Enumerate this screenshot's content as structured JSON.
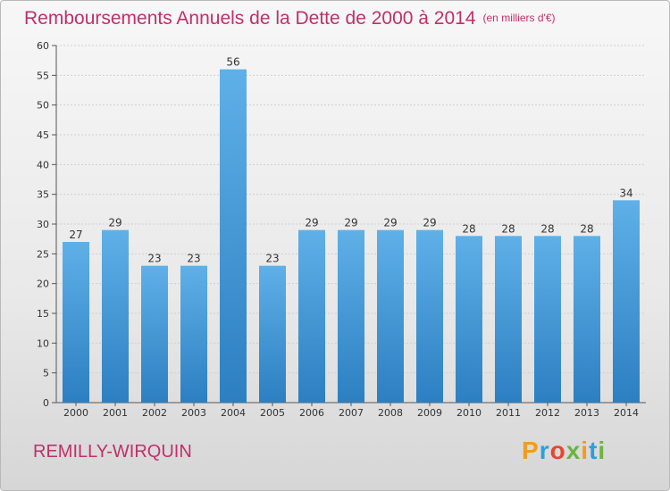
{
  "title": "Remboursements Annuels de la Dette de 2000 à 2014",
  "subtitle": "(en milliers d'€)",
  "commune": "REMILLY-WIRQUIN",
  "logo": {
    "letters": [
      "P",
      "r",
      "o",
      "x",
      "i",
      "t",
      "i"
    ],
    "colors": [
      "#f59a1c",
      "#2d9fd9",
      "#e8462f",
      "#6bb43f",
      "#f59a1c",
      "#2d9fd9",
      "#6bb43f"
    ]
  },
  "colors": {
    "title": "#c0306a",
    "bar_top": "#5fb0e8",
    "bar_bottom": "#2c7fc1",
    "grid": "#cfcfcf"
  },
  "chart_data": {
    "type": "bar",
    "categories": [
      "2000",
      "2001",
      "2002",
      "2003",
      "2004",
      "2005",
      "2006",
      "2007",
      "2008",
      "2009",
      "2010",
      "2011",
      "2012",
      "2013",
      "2014"
    ],
    "values": [
      27,
      29,
      23,
      23,
      56,
      23,
      29,
      29,
      29,
      29,
      28,
      28,
      28,
      28,
      34
    ],
    "ylim": [
      0,
      60
    ],
    "yticks": [
      0,
      5,
      10,
      15,
      20,
      25,
      30,
      35,
      40,
      45,
      50,
      55,
      60
    ],
    "grid": true
  }
}
